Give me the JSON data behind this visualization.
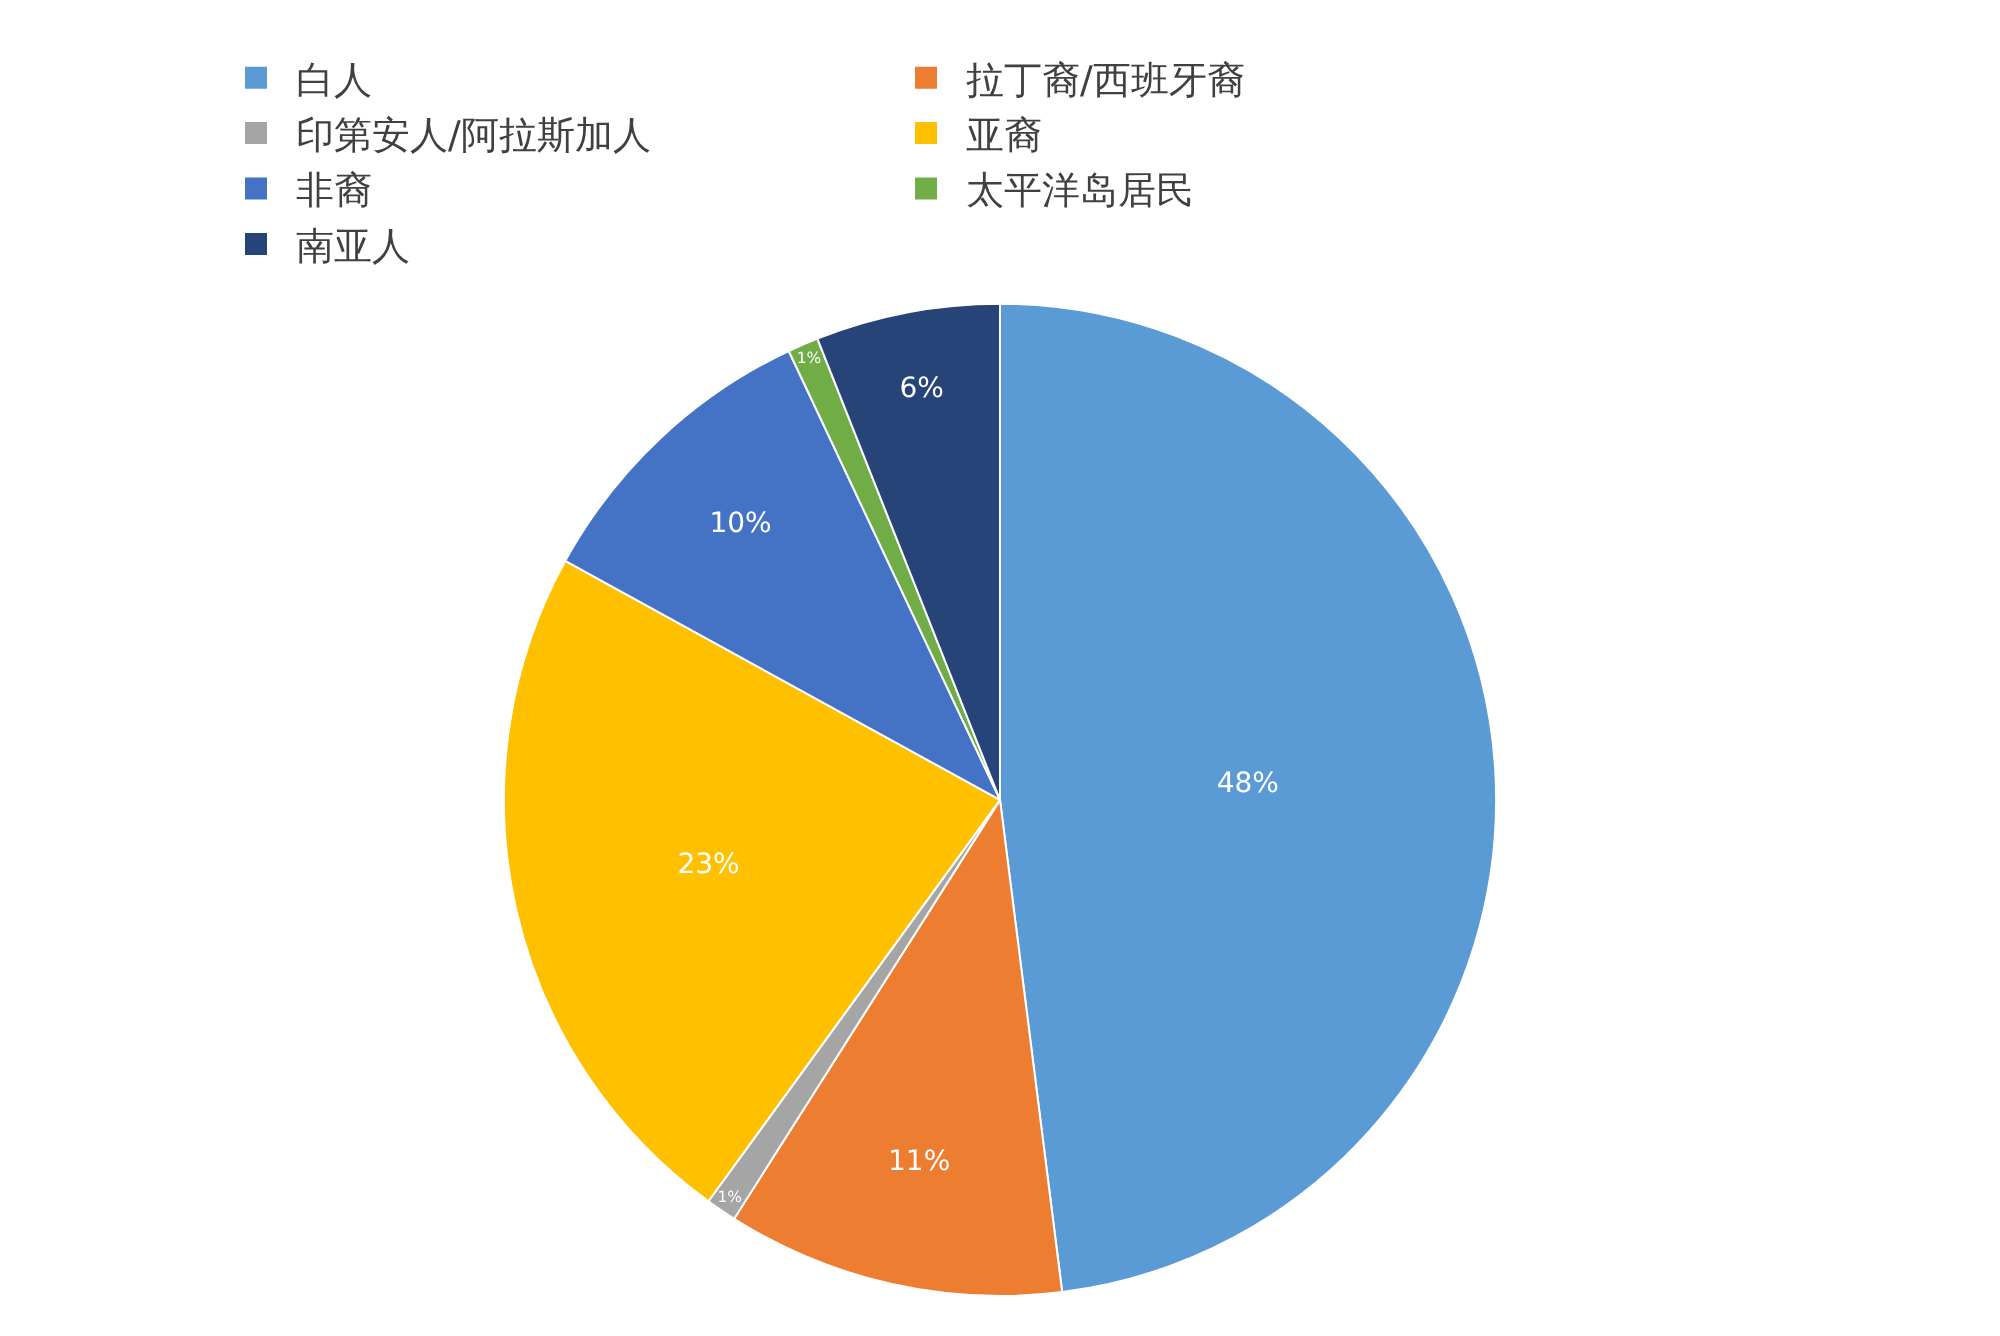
{
  "chart_data": {
    "type": "pie",
    "categories": [
      "白人",
      "拉丁裔/西班牙裔",
      "印第安人/阿拉斯加人",
      "亚裔",
      "非裔",
      "太平洋岛居民",
      "南亚人"
    ],
    "values": [
      48,
      11,
      1,
      23,
      10,
      1,
      6
    ],
    "value_labels": [
      "48%",
      "11%",
      "1%",
      "23%",
      "10%",
      "1%",
      "6%"
    ],
    "colors": [
      "#5b9bd5",
      "#ed7d31",
      "#a5a5a5",
      "#ffc000",
      "#4472c4",
      "#70ad47",
      "#264478"
    ],
    "legend": "top"
  }
}
